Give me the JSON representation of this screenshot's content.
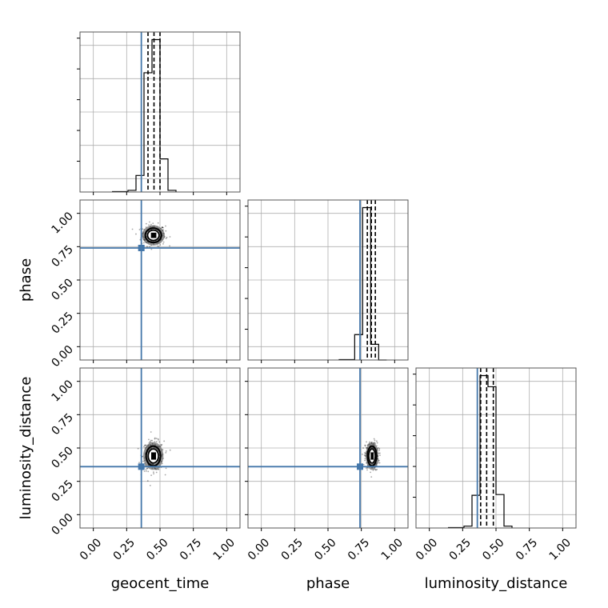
{
  "chart_data": {
    "type": "corner",
    "parameters": [
      "geocent_time",
      "phase",
      "luminosity_distance"
    ],
    "axis_range": [
      -0.1,
      1.1
    ],
    "tick_values": [
      0.0,
      0.25,
      0.5,
      0.75,
      1.0
    ],
    "tick_labels": [
      "0.00",
      "0.25",
      "0.50",
      "0.75",
      "1.00"
    ],
    "grid": true,
    "colors": {
      "truth": "#4477aa",
      "hist": "#000000",
      "contour": "#000000",
      "grid": "#b0b0b0"
    },
    "truths": {
      "geocent_time": 0.36,
      "phase": 0.74,
      "luminosity_distance": 0.36
    },
    "histograms": {
      "geocent_time": {
        "bin_edges": [
          0.26,
          0.32,
          0.38,
          0.44,
          0.5,
          0.56,
          0.62
        ],
        "counts": [
          0.05,
          0.5,
          3.6,
          4.6,
          1.0,
          0.05
        ],
        "quantiles": [
          0.41,
          0.455,
          0.5
        ]
      },
      "phase": {
        "bin_edges": [
          0.7,
          0.76,
          0.82,
          0.88,
          0.94
        ],
        "counts": [
          0.55,
          3.3,
          0.34,
          0.0
        ],
        "quantiles": [
          0.795,
          0.825,
          0.855
        ]
      },
      "luminosity_distance": {
        "bin_edges": [
          0.26,
          0.32,
          0.38,
          0.44,
          0.5,
          0.56,
          0.62
        ],
        "counts": [
          0.05,
          0.88,
          4.1,
          3.8,
          0.9,
          0.05
        ],
        "quantiles": [
          0.385,
          0.43,
          0.48
        ]
      }
    },
    "posterior_2d": {
      "phase_vs_geocent_time": {
        "center": [
          0.45,
          0.835
        ],
        "spread": [
          0.045,
          0.04
        ],
        "num_points": 260
      },
      "luminosity_distance_vs_geocent_time": {
        "center": [
          0.45,
          0.44
        ],
        "spread": [
          0.04,
          0.055
        ],
        "num_points": 320
      },
      "luminosity_distance_vs_phase": {
        "center": [
          0.83,
          0.44
        ],
        "spread": [
          0.025,
          0.055
        ],
        "num_points": 320
      }
    }
  }
}
